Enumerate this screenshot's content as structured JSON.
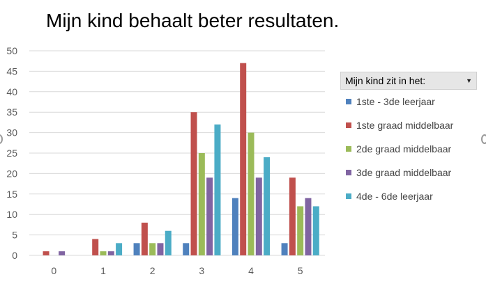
{
  "chart_data": {
    "type": "bar",
    "title": "Mijn kind behaalt beter resultaten.",
    "categories": [
      "0",
      "1",
      "2",
      "3",
      "4",
      "5"
    ],
    "ylim": [
      0,
      50
    ],
    "yticks": [
      "0",
      "5",
      "10",
      "15",
      "20",
      "25",
      "30",
      "35",
      "40",
      "45",
      "50"
    ],
    "grid": true,
    "legend_position": "right",
    "legend_title": "Mijn kind zit in het:",
    "series": [
      {
        "name": "1ste - 3de leerjaar",
        "color": "#4F81BD",
        "values": [
          0,
          0,
          3,
          3,
          14,
          3
        ]
      },
      {
        "name": "1ste graad middelbaar",
        "color": "#C0504D",
        "values": [
          1,
          4,
          8,
          35,
          47,
          19
        ]
      },
      {
        "name": "2de graad middelbaar",
        "color": "#9BBB59",
        "values": [
          0,
          1,
          3,
          25,
          30,
          12
        ]
      },
      {
        "name": "3de graad middelbaar",
        "color": "#8064A2",
        "values": [
          1,
          1,
          3,
          19,
          19,
          14
        ]
      },
      {
        "name": "4de - 6de leerjaar",
        "color": "#4BACC6",
        "values": [
          0,
          3,
          6,
          32,
          24,
          12
        ]
      }
    ]
  }
}
